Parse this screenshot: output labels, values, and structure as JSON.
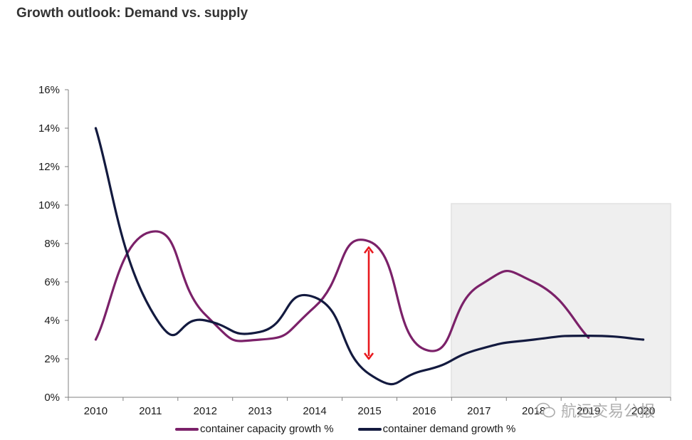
{
  "title": "Growth outlook: Demand vs. supply",
  "watermark": {
    "text": "航运交易公报",
    "icon": "wechat-icon"
  },
  "colors": {
    "capacity": "#7b2169",
    "demand": "#131a3f",
    "arrow": "#e8191e",
    "forecast_shade": "#efefef",
    "axis": "#808080"
  },
  "chart_data": {
    "type": "line",
    "title": "Growth outlook: Demand vs. supply",
    "xlabel": "",
    "ylabel": "",
    "categories": [
      "2010",
      "2011",
      "2012",
      "2013",
      "2014",
      "2015",
      "2016",
      "2017",
      "2018",
      "2019",
      "2020"
    ],
    "ylim": [
      0,
      16
    ],
    "yticks": [
      "0%",
      "2%",
      "4%",
      "6%",
      "8%",
      "10%",
      "12%",
      "14%",
      "16%"
    ],
    "yvalues": [
      0,
      2,
      4,
      6,
      8,
      10,
      12,
      14,
      16
    ],
    "grid": false,
    "smoothed": true,
    "series": [
      {
        "name": "container capacity growth %",
        "color": "#7b2169",
        "values": [
          3.0,
          8.6,
          4.3,
          3.0,
          4.7,
          8.1,
          2.5,
          5.8,
          6.0,
          3.1,
          null
        ]
      },
      {
        "name": "container demand growth %",
        "color": "#131a3f",
        "values": [
          14.0,
          4.6,
          4.0,
          3.4,
          5.2,
          1.2,
          1.4,
          2.5,
          3.0,
          3.2,
          3.0
        ]
      }
    ],
    "forecast_region": {
      "from": "2017",
      "to": "2020",
      "ymax": 10
    },
    "annotations": [
      {
        "type": "double-arrow",
        "category": "2015",
        "from": 2.0,
        "to": 7.8,
        "color": "#e8191e",
        "meaning": "gap between capacity and demand growth"
      }
    ],
    "legend": {
      "position": "bottom",
      "entries": [
        "container capacity growth %",
        "container demand growth %"
      ]
    }
  }
}
